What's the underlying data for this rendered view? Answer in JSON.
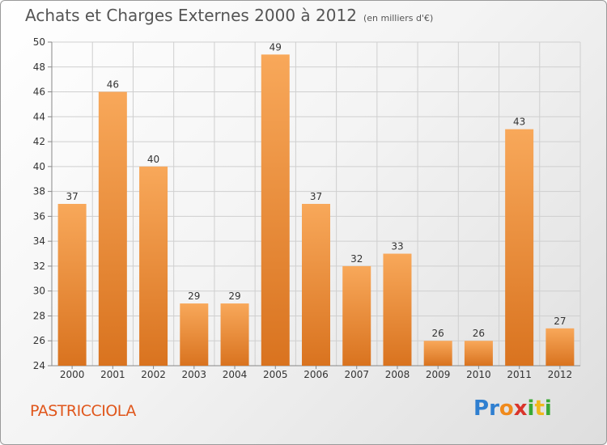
{
  "title": "Achats et Charges Externes 2000 à 2012",
  "unit": "(en milliers d'€)",
  "commune": "PASTRICCIOLA",
  "logo": {
    "letters": [
      {
        "ch": "P",
        "color": "#2f7fd0"
      },
      {
        "ch": "r",
        "color": "#2f7fd0"
      },
      {
        "ch": "o",
        "color": "#f08a1c"
      },
      {
        "ch": "x",
        "color": "#d9342b"
      },
      {
        "ch": "i",
        "color": "#3aa935"
      },
      {
        "ch": "t",
        "color": "#f0b81c"
      },
      {
        "ch": "i",
        "color": "#3aa935"
      }
    ]
  },
  "colors": {
    "bar_light": "#f8a85a",
    "bar_dark": "#d9731f",
    "grid": "#cfcfcf"
  },
  "chart_data": {
    "type": "bar",
    "categories": [
      "2000",
      "2001",
      "2002",
      "2003",
      "2004",
      "2005",
      "2006",
      "2007",
      "2008",
      "2009",
      "2010",
      "2011",
      "2012"
    ],
    "values": [
      37,
      46,
      40,
      29,
      29,
      49,
      37,
      32,
      33,
      26,
      26,
      43,
      27
    ],
    "ylim": [
      24,
      50
    ],
    "yticks": [
      24,
      26,
      28,
      30,
      32,
      34,
      36,
      38,
      40,
      42,
      44,
      46,
      48,
      50
    ],
    "grid": true,
    "data_labels": true
  }
}
